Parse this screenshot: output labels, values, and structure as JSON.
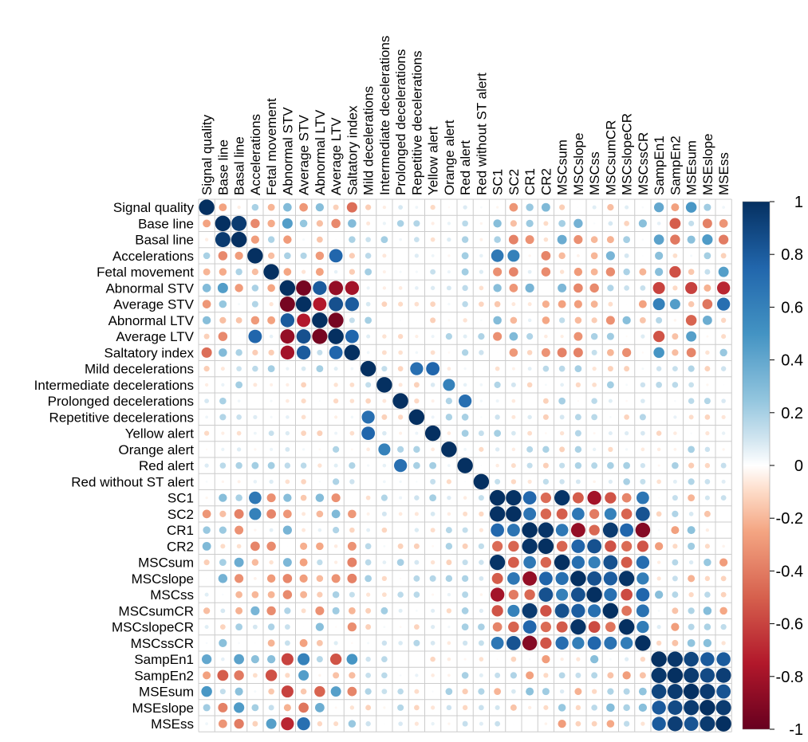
{
  "chart_data": {
    "type": "heatmap",
    "variant": "correlation-circle-matrix",
    "title": "",
    "variables": [
      "Signal quality",
      "Base line",
      "Basal line",
      "Accelerations",
      "Fetal movement",
      "Abnormal STV",
      "Average STV",
      "Abnormal LTV",
      "Average LTV",
      "Saltatory index",
      "Mild decelerations",
      "Intermediate decelerations",
      "Prolonged decelerations",
      "Repetitive decelerations",
      "Yellow alert",
      "Orange alert",
      "Red alert",
      "Red without ST alert",
      "SC1",
      "SC2",
      "CR1",
      "CR2",
      "MSCsum",
      "MSCslope",
      "MSCss",
      "MSCsumCR",
      "MSCslopeCR",
      "MSCssCR",
      "SampEn1",
      "SampEn2",
      "MSEsum",
      "MSEslope",
      "MSEss"
    ],
    "groups": {
      "ctg": [
        "Signal quality",
        "Base line",
        "Basal line",
        "Accelerations",
        "Fetal movement",
        "Abnormal STV",
        "Average STV",
        "Abnormal LTV",
        "Average LTV",
        "Saltatory index"
      ],
      "events": [
        "Mild decelerations",
        "Intermediate decelerations",
        "Prolonged decelerations",
        "Repetitive decelerations",
        "Yellow alert",
        "Orange alert",
        "Red alert",
        "Red without ST alert"
      ],
      "msc": [
        "SC1",
        "SC2",
        "CR1",
        "CR2",
        "MSCsum",
        "MSCslope",
        "MSCss",
        "MSCsumCR",
        "MSCslopeCR",
        "MSCssCR"
      ],
      "entropy": [
        "SampEn1",
        "SampEn2",
        "MSEsum",
        "MSEslope",
        "MSEss"
      ]
    },
    "correlations": [
      {
        "a": "Base line",
        "b": "Basal line",
        "r": 0.95
      },
      {
        "a": "Signal quality",
        "b": "Saltatory index",
        "r": -0.45
      },
      {
        "a": "Signal quality",
        "b": "Abnormal STV",
        "r": 0.3
      },
      {
        "a": "Signal quality",
        "b": "Average STV",
        "r": -0.3
      },
      {
        "a": "Signal quality",
        "b": "SampEn1",
        "r": 0.4
      },
      {
        "a": "Base line",
        "b": "Abnormal STV",
        "r": 0.45
      },
      {
        "a": "Base line",
        "b": "Average LTV",
        "r": -0.35
      },
      {
        "a": "Base line",
        "b": "Accelerations",
        "r": -0.35
      },
      {
        "a": "Accelerations",
        "b": "Average LTV",
        "r": 0.75
      },
      {
        "a": "Accelerations",
        "b": "SC1",
        "r": 0.65
      },
      {
        "a": "Accelerations",
        "b": "SC2",
        "r": 0.6
      },
      {
        "a": "Abnormal STV",
        "b": "Average STV",
        "r": -0.95
      },
      {
        "a": "Abnormal STV",
        "b": "Abnormal LTV",
        "r": 0.8
      },
      {
        "a": "Abnormal STV",
        "b": "Average LTV",
        "r": -0.85
      },
      {
        "a": "Abnormal STV",
        "b": "Saltatory index",
        "r": -0.8
      },
      {
        "a": "Abnormal STV",
        "b": "SampEn1",
        "r": -0.6
      },
      {
        "a": "Abnormal STV",
        "b": "MSEss",
        "r": -0.7
      },
      {
        "a": "Average STV",
        "b": "Abnormal LTV",
        "r": -0.75
      },
      {
        "a": "Average STV",
        "b": "Average LTV",
        "r": 0.85
      },
      {
        "a": "Average STV",
        "b": "Saltatory index",
        "r": 0.8
      },
      {
        "a": "Average STV",
        "b": "SampEn1",
        "r": 0.6
      },
      {
        "a": "Average STV",
        "b": "MSEss",
        "r": 0.7
      },
      {
        "a": "Abnormal LTV",
        "b": "Average LTV",
        "r": -0.95
      },
      {
        "a": "Average LTV",
        "b": "Saltatory index",
        "r": 0.75
      },
      {
        "a": "Mild decelerations",
        "b": "Repetitive decelerations",
        "r": 0.7
      },
      {
        "a": "Mild decelerations",
        "b": "Yellow alert",
        "r": 0.75
      },
      {
        "a": "Intermediate decelerations",
        "b": "Orange alert",
        "r": 0.6
      },
      {
        "a": "Prolonged decelerations",
        "b": "Red alert",
        "r": 0.7
      },
      {
        "a": "SC1",
        "b": "SC2",
        "r": 0.99
      },
      {
        "a": "SC1",
        "b": "MSCsum",
        "r": 0.98
      },
      {
        "a": "SC1",
        "b": "MSCss",
        "r": -0.8
      },
      {
        "a": "CR1",
        "b": "CR2",
        "r": 0.98
      },
      {
        "a": "CR1",
        "b": "MSCslope",
        "r": -0.85
      },
      {
        "a": "CR1",
        "b": "MSCsumCR",
        "r": 0.95
      },
      {
        "a": "CR1",
        "b": "MSCssCR",
        "r": -0.9
      },
      {
        "a": "MSCslope",
        "b": "MSCslopeCR",
        "r": 0.98
      },
      {
        "a": "MSCslope",
        "b": "MSCss",
        "r": 0.85
      },
      {
        "a": "MSCss",
        "b": "MSCssCR",
        "r": 0.75
      },
      {
        "a": "SampEn1",
        "b": "SampEn2",
        "r": 0.97
      },
      {
        "a": "SampEn1",
        "b": "MSEsum",
        "r": 0.9
      },
      {
        "a": "SampEn1",
        "b": "MSEss",
        "r": 0.8
      },
      {
        "a": "SampEn2",
        "b": "MSEsum",
        "r": 0.95
      },
      {
        "a": "MSEsum",
        "b": "MSEslope",
        "r": 0.95
      },
      {
        "a": "MSEslope",
        "b": "MSEss",
        "r": 0.95
      }
    ],
    "colorbar": {
      "ticks": [
        "1",
        "0.8",
        "0.6",
        "0.4",
        "0.2",
        "0",
        "-0.2",
        "-0.4",
        "-0.6",
        "-0.8",
        "-1"
      ],
      "range": [
        -1,
        1
      ],
      "colors": {
        "neg_strong": "#67001f",
        "neg_mid": "#d6604d",
        "zero": "#ffffff",
        "pos_mid": "#4393c3",
        "pos_strong": "#053061"
      }
    },
    "grid": true,
    "legend": "right"
  }
}
